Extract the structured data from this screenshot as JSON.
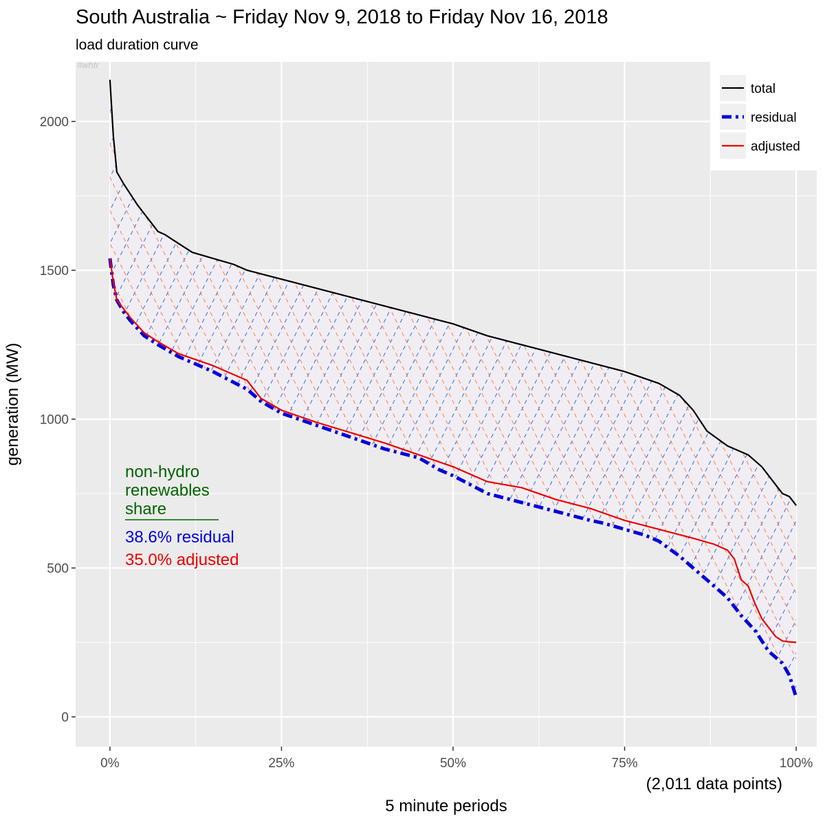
{
  "chart_data": {
    "type": "line",
    "title": "South Australia ~ Friday Nov 9, 2018 to Friday Nov 16, 2018",
    "subtitle": "load duration curve",
    "watermark": "#whtr",
    "xlabel": "5 minute periods",
    "x_note": "(2,011 data points)",
    "ylabel": "generation (MW)",
    "xlim": [
      -0.05,
      1.03
    ],
    "ylim": [
      -100,
      2200
    ],
    "x_ticks": [
      0,
      0.25,
      0.5,
      0.75,
      1.0
    ],
    "x_tick_labels": [
      "0%",
      "25%",
      "50%",
      "75%",
      "100%"
    ],
    "y_ticks": [
      0,
      500,
      1000,
      1500,
      2000
    ],
    "y_tick_labels": [
      "0",
      "500",
      "1000",
      "1500",
      "2000"
    ],
    "grid": true,
    "legend_position": "top-right",
    "colors": {
      "total": "#000000",
      "residual": "#0000dd",
      "adjusted": "#ee0000",
      "annotation_title": "#006400",
      "panel": "#ebebeb",
      "gridline": "#ffffff"
    },
    "series": [
      {
        "name": "total",
        "style": "solid",
        "x": [
          0,
          0.005,
          0.01,
          0.02,
          0.04,
          0.06,
          0.07,
          0.08,
          0.1,
          0.12,
          0.15,
          0.18,
          0.2,
          0.25,
          0.3,
          0.35,
          0.4,
          0.45,
          0.5,
          0.55,
          0.6,
          0.65,
          0.7,
          0.75,
          0.8,
          0.83,
          0.85,
          0.87,
          0.9,
          0.93,
          0.95,
          0.97,
          0.98,
          0.99,
          1.0
        ],
        "values": [
          2140,
          1950,
          1830,
          1790,
          1720,
          1660,
          1630,
          1620,
          1590,
          1560,
          1540,
          1520,
          1500,
          1470,
          1440,
          1410,
          1380,
          1350,
          1320,
          1280,
          1250,
          1220,
          1190,
          1160,
          1120,
          1080,
          1030,
          960,
          910,
          880,
          840,
          780,
          750,
          740,
          710
        ]
      },
      {
        "name": "residual",
        "style": "dashed",
        "x": [
          0,
          0.005,
          0.01,
          0.02,
          0.03,
          0.05,
          0.07,
          0.1,
          0.15,
          0.2,
          0.22,
          0.25,
          0.3,
          0.35,
          0.4,
          0.45,
          0.48,
          0.5,
          0.55,
          0.6,
          0.65,
          0.7,
          0.72,
          0.75,
          0.78,
          0.8,
          0.83,
          0.85,
          0.88,
          0.9,
          0.92,
          0.94,
          0.96,
          0.98,
          0.99,
          1.0
        ],
        "values": [
          1540,
          1450,
          1400,
          1360,
          1330,
          1280,
          1250,
          1210,
          1160,
          1100,
          1060,
          1020,
          980,
          940,
          900,
          870,
          830,
          810,
          750,
          720,
          690,
          660,
          650,
          630,
          610,
          590,
          540,
          500,
          440,
          400,
          340,
          290,
          220,
          180,
          140,
          65
        ]
      },
      {
        "name": "adjusted",
        "style": "solid",
        "x": [
          0,
          0.005,
          0.01,
          0.02,
          0.03,
          0.05,
          0.07,
          0.1,
          0.15,
          0.2,
          0.22,
          0.25,
          0.3,
          0.35,
          0.4,
          0.45,
          0.5,
          0.55,
          0.6,
          0.65,
          0.7,
          0.75,
          0.8,
          0.85,
          0.88,
          0.9,
          0.91,
          0.92,
          0.93,
          0.94,
          0.95,
          0.96,
          0.97,
          0.98,
          0.99,
          1.0
        ],
        "values": [
          1540,
          1460,
          1400,
          1370,
          1340,
          1290,
          1260,
          1220,
          1180,
          1130,
          1070,
          1030,
          990,
          955,
          920,
          880,
          840,
          790,
          770,
          730,
          700,
          660,
          630,
          600,
          580,
          560,
          530,
          460,
          440,
          380,
          330,
          300,
          270,
          255,
          252,
          250
        ]
      }
    ],
    "annotation": {
      "title_lines": [
        "non-hydro",
        "renewables",
        "share"
      ],
      "residual_text": "38.6% residual",
      "adjusted_text": "35.0% adjusted"
    }
  }
}
